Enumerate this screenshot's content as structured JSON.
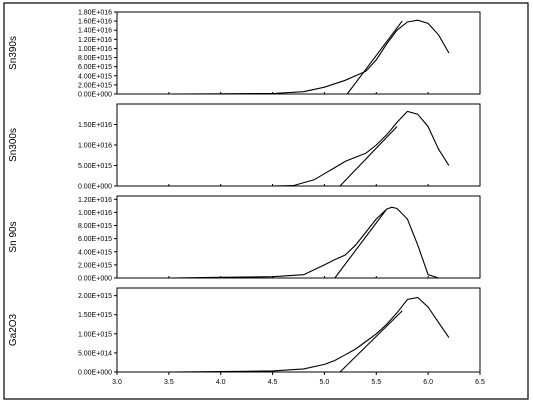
{
  "chart_data": [
    {
      "type": "line",
      "ylabel": "Sn390s",
      "x_range": [
        3.0,
        6.5
      ],
      "ylim": [
        0,
        1.8e+16
      ],
      "y_ticks": [
        "0.00E+000",
        "2.00E+015",
        "4.00E+015",
        "6.00E+015",
        "8.00E+015",
        "1.00E+016",
        "1.20E+016",
        "1.40E+016",
        "1.60E+016",
        "1.80E+016"
      ],
      "y_tick_values": [
        0,
        2000000000000000.0,
        4000000000000000.0,
        6000000000000000.0,
        8000000000000000.0,
        1e+16,
        1.2e+16,
        1.4e+16,
        1.6e+16,
        1.8e+16
      ],
      "series": [
        {
          "x": [
            3.0,
            3.5,
            4.0,
            4.5,
            4.8,
            5.0,
            5.2,
            5.4,
            5.5,
            5.6,
            5.7,
            5.8,
            5.9,
            6.0,
            6.1,
            6.2
          ],
          "y": [
            0,
            0,
            50000000000000.0,
            100000000000000.0,
            500000000000000.0,
            1500000000000000.0,
            3000000000000000.0,
            5000000000000000.0,
            7500000000000000.0,
            1.1e+16,
            1.4e+16,
            1.58e+16,
            1.62e+16,
            1.55e+16,
            1.3e+16,
            9000000000000000.0
          ]
        },
        {
          "x": [
            5.22,
            5.75
          ],
          "y": [
            0,
            1.6e+16
          ]
        }
      ]
    },
    {
      "type": "line",
      "ylabel": "Sn300s",
      "x_range": [
        3.0,
        6.5
      ],
      "ylim": [
        0,
        2e+16
      ],
      "y_ticks": [
        "0.00E+000",
        "5.00E+015",
        "1.00E+016",
        "1.50E+016"
      ],
      "y_tick_values": [
        0,
        5000000000000000.0,
        1e+16,
        1.5e+16
      ],
      "series": [
        {
          "x": [
            4.5,
            4.7,
            4.9,
            5.0,
            5.1,
            5.2,
            5.3,
            5.4,
            5.5,
            5.6,
            5.7,
            5.8,
            5.9,
            6.0,
            6.1,
            6.2
          ],
          "y": [
            0,
            100000000000000.0,
            1500000000000000.0,
            3000000000000000.0,
            4500000000000000.0,
            6000000000000000.0,
            7000000000000000.0,
            8000000000000000.0,
            1e+16,
            1.25e+16,
            1.55e+16,
            1.82e+16,
            1.75e+16,
            1.45e+16,
            9000000000000000.0,
            5000000000000000.0
          ]
        },
        {
          "x": [
            5.15,
            5.7
          ],
          "y": [
            0,
            1.45e+16
          ]
        }
      ]
    },
    {
      "type": "line",
      "ylabel": "Sn 90s",
      "x_range": [
        3.0,
        6.5
      ],
      "ylim": [
        0,
        1.25e+16
      ],
      "y_ticks": [
        "0.00E+000",
        "2.00E+015",
        "4.00E+015",
        "6.00E+015",
        "8.00E+015",
        "1.00E+016",
        "1.20E+016"
      ],
      "y_tick_values": [
        0,
        2000000000000000.0,
        4000000000000000.0,
        6000000000000000.0,
        8000000000000000.0,
        1e+16,
        1.2e+16
      ],
      "series": [
        {
          "x": [
            3.5,
            4.0,
            4.5,
            4.8,
            5.0,
            5.1,
            5.2,
            5.3,
            5.4,
            5.5,
            5.6,
            5.65,
            5.7,
            5.8,
            5.9,
            6.0,
            6.1,
            6.2
          ],
          "y": [
            0,
            100000000000000.0,
            200000000000000.0,
            500000000000000.0,
            2000000000000000.0,
            2800000000000000.0,
            3500000000000000.0,
            5000000000000000.0,
            7000000000000000.0,
            9000000000000000.0,
            1.05e+16,
            1.08e+16,
            1.06e+16,
            9000000000000000.0,
            5000000000000000.0,
            500000000000000.0,
            0,
            0
          ]
        },
        {
          "x": [
            5.1,
            5.6
          ],
          "y": [
            0,
            1.05e+16
          ]
        }
      ]
    },
    {
      "type": "line",
      "ylabel": "Ga2O3",
      "x_range": [
        3.0,
        6.5
      ],
      "xlabel": "",
      "x_ticks": [
        "3.0",
        "3.5",
        "4.0",
        "4.5",
        "5.0",
        "5.5",
        "6.0",
        "6.5"
      ],
      "x_tick_values": [
        3.0,
        3.5,
        4.0,
        4.5,
        5.0,
        5.5,
        6.0,
        6.5
      ],
      "ylim": [
        0,
        2200000000000000.0
      ],
      "y_ticks": [
        "0.00E+000",
        "5.00E+014",
        "1.00E+015",
        "1.50E+015",
        "2.00E+015"
      ],
      "y_tick_values": [
        0,
        500000000000000.0,
        1000000000000000.0,
        1500000000000000.0,
        2000000000000000.0
      ],
      "series": [
        {
          "x": [
            3.0,
            3.5,
            4.0,
            4.5,
            4.8,
            5.0,
            5.1,
            5.2,
            5.3,
            5.4,
            5.5,
            5.6,
            5.7,
            5.8,
            5.9,
            6.0,
            6.1,
            6.2
          ],
          "y": [
            0,
            0,
            10000000000000.0,
            30000000000000.0,
            80000000000000.0,
            200000000000000.0,
            300000000000000.0,
            450000000000000.0,
            600000000000000.0,
            800000000000000.0,
            1000000000000000.0,
            1250000000000000.0,
            1550000000000000.0,
            1900000000000000.0,
            1950000000000000.0,
            1700000000000000.0,
            1300000000000000.0,
            900000000000000.0
          ]
        },
        {
          "x": [
            5.15,
            5.75
          ],
          "y": [
            0,
            1600000000000000.0
          ]
        }
      ]
    }
  ]
}
